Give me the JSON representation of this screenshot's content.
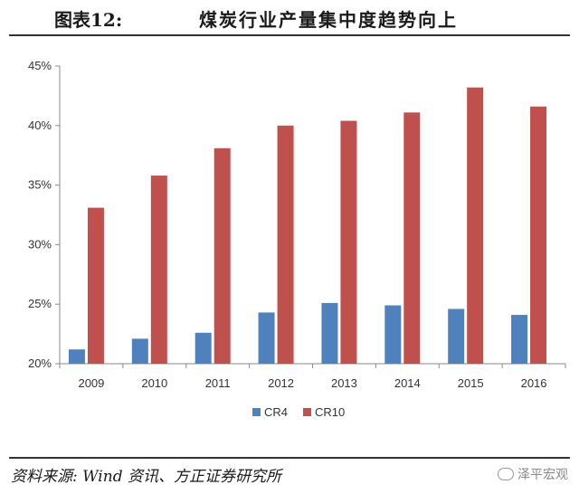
{
  "header": {
    "figure_label": "图表12:",
    "title": "煤炭行业产量集中度趋势向上"
  },
  "source": "资料来源: Wind 资讯、方正证券研究所",
  "watermark": {
    "text": "泽平宏观",
    "icon": "wechat-icon"
  },
  "colors": {
    "CR4": "#4F81BD",
    "CR10": "#C0504D"
  },
  "chart_data": {
    "type": "bar",
    "categories": [
      "2009",
      "2010",
      "2011",
      "2012",
      "2013",
      "2014",
      "2015",
      "2016"
    ],
    "series": [
      {
        "name": "CR4",
        "values": [
          21.2,
          22.1,
          22.6,
          24.3,
          25.1,
          24.9,
          24.6,
          24.1
        ]
      },
      {
        "name": "CR10",
        "values": [
          33.1,
          35.8,
          38.1,
          40.0,
          40.4,
          41.1,
          43.2,
          41.6
        ]
      }
    ],
    "ylim": [
      20,
      45
    ],
    "yticks": [
      20,
      25,
      30,
      35,
      40,
      45
    ],
    "ytick_labels": [
      "20%",
      "25%",
      "30%",
      "35%",
      "40%",
      "45%"
    ],
    "legend_position": "bottom-center",
    "grid": false
  }
}
